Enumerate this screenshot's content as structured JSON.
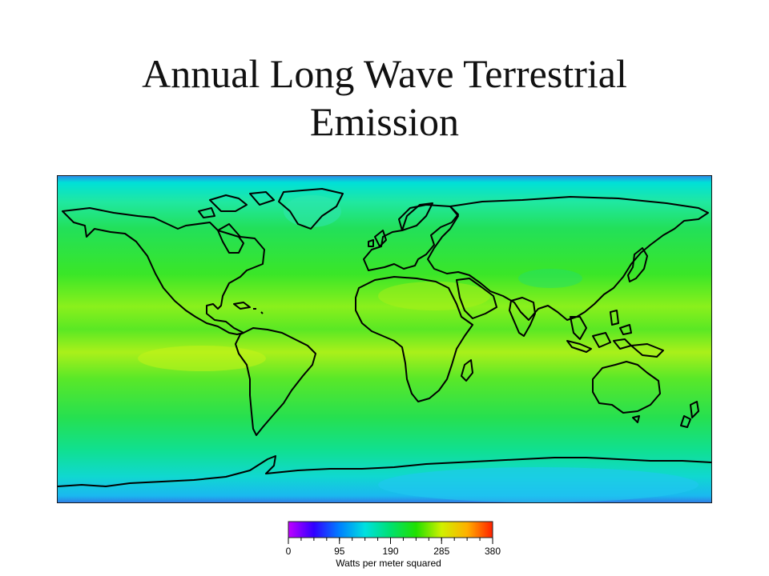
{
  "title": {
    "line1": "Annual Long Wave Terrestrial",
    "line2": "Emission"
  },
  "map": {
    "projection": "equirectangular world map",
    "field": "annual long wave terrestrial emission",
    "coastline_color": "#000000"
  },
  "legend": {
    "units": "Watts per meter squared",
    "min": 0,
    "max": 380,
    "ticks": [
      "0",
      "95",
      "190",
      "285",
      "380"
    ],
    "colors": [
      "#c000ff",
      "#3000ff",
      "#0080ff",
      "#00e0e0",
      "#00e070",
      "#20e000",
      "#d0f000",
      "#ffb000",
      "#ff2000"
    ]
  }
}
